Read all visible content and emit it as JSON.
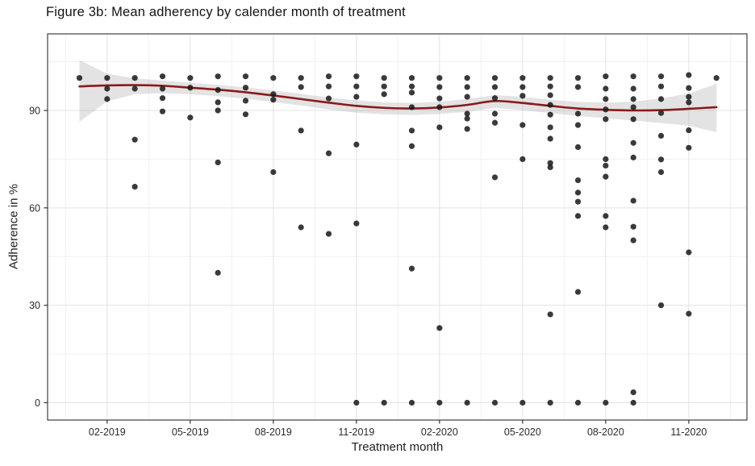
{
  "figure": {
    "title": "Figure 3b: Mean adherency by calender month of treatment"
  },
  "chart_data": {
    "type": "scatter",
    "title": "Figure 3b: Mean adherency by calender month of treatment",
    "xlabel": "Treatment month",
    "ylabel": "Adherence in %",
    "legend": "none",
    "grid": "on",
    "y_ticks": [
      0,
      30,
      60,
      90
    ],
    "y_minor_ticks": [
      15,
      45,
      75,
      105
    ],
    "ylim": [
      -5.34,
      113.58
    ],
    "xlim": [
      -1.15,
      24.1
    ],
    "x_tick_labels": [
      "02-2019",
      "05-2019",
      "08-2019",
      "11-2019",
      "02-2020",
      "05-2020",
      "08-2020",
      "11-2020"
    ],
    "x_tick_month_index": [
      1,
      4,
      7,
      10,
      13,
      16,
      19,
      22
    ],
    "months": [
      "01-2019",
      "02-2019",
      "03-2019",
      "04-2019",
      "05-2019",
      "06-2019",
      "07-2019",
      "08-2019",
      "09-2019",
      "10-2019",
      "11-2019",
      "12-2019",
      "01-2020",
      "02-2020",
      "03-2020",
      "04-2020",
      "05-2020",
      "06-2020",
      "07-2020",
      "08-2020",
      "09-2020",
      "10-2020",
      "11-2020",
      "12-2020"
    ],
    "points_by_month": {
      "01-2019": [
        100
      ],
      "02-2019": [
        100,
        96.7,
        93.5
      ],
      "03-2019": [
        100,
        96.7,
        81,
        66.5
      ],
      "04-2019": [
        100.5,
        96.7,
        93.8,
        89.7
      ],
      "05-2019": [
        100,
        97,
        87.8
      ],
      "06-2019": [
        100.5,
        96.3,
        92.5,
        90,
        74,
        40
      ],
      "07-2019": [
        100.5,
        97,
        93,
        88.8
      ],
      "08-2019": [
        100,
        95,
        93.3,
        71
      ],
      "09-2019": [
        100,
        97.2,
        83.8,
        54
      ],
      "10-2019": [
        100.5,
        97.4,
        93.7,
        76.8,
        52
      ],
      "11-2019": [
        100.5,
        97.4,
        94.2,
        79.5,
        55.2,
        0
      ],
      "12-2019": [
        100,
        97.4,
        95,
        0
      ],
      "01-2020": [
        100,
        97.4,
        95.5,
        91,
        83.8,
        79,
        41.3,
        0
      ],
      "02-2020": [
        100,
        97.2,
        93.7,
        91,
        84.8,
        23,
        0
      ],
      "03-2020": [
        100,
        97.2,
        94.2,
        89,
        87.5,
        84.3,
        0
      ],
      "04-2020": [
        100,
        97.2,
        93.8,
        89,
        86.2,
        69.4,
        0
      ],
      "05-2020": [
        100,
        97.2,
        94.5,
        85.5,
        75,
        0
      ],
      "06-2020": [
        100,
        97.4,
        94.7,
        91.7,
        88.7,
        84.8,
        81.3,
        73.8,
        72.5,
        27.2,
        0
      ],
      "07-2020": [
        100,
        97.2,
        89,
        85.5,
        78.7,
        68.5,
        64.7,
        61.9,
        57.5,
        34.1,
        0
      ],
      "08-2020": [
        100.5,
        96.7,
        93.5,
        90.3,
        87.3,
        75,
        73,
        69.6,
        57.5,
        54,
        0
      ],
      "09-2020": [
        100.5,
        96.7,
        93.5,
        91,
        87.3,
        80,
        75.5,
        62.2,
        54.2,
        50,
        3.2,
        0
      ],
      "10-2020": [
        100.5,
        97.4,
        93.5,
        89.2,
        82.2,
        74.9,
        71,
        30
      ],
      "11-2020": [
        100.9,
        96.9,
        94.2,
        92.5,
        83.9,
        78.5,
        46.3,
        27.4
      ],
      "12-2020": [
        100
      ]
    },
    "smooth_line": {
      "name": "mean-adherence-trend",
      "values": [
        97.4,
        97.7,
        97.8,
        97.6,
        97.0,
        96.4,
        95.6,
        94.6,
        93.5,
        92.4,
        91.4,
        90.8,
        90.6,
        90.9,
        91.7,
        92.9,
        92.3,
        91.4,
        90.6,
        90.2,
        90.0,
        90.1,
        90.5,
        91.0
      ]
    },
    "ci_band": {
      "upper": [
        105.5,
        101.3,
        99.9,
        99.2,
        98.5,
        97.9,
        97.1,
        96.1,
        95.1,
        94.0,
        93.1,
        92.5,
        92.3,
        92.7,
        93.5,
        94.7,
        94.2,
        93.3,
        92.6,
        92.4,
        92.7,
        93.7,
        95.2,
        98.2
      ],
      "lower": [
        86.5,
        92.8,
        95.0,
        95.3,
        95.0,
        94.4,
        93.6,
        92.6,
        91.5,
        90.3,
        89.3,
        88.8,
        88.6,
        88.9,
        89.6,
        90.8,
        90.1,
        89.2,
        88.3,
        87.6,
        86.9,
        86.1,
        85.3,
        83.3
      ]
    },
    "colors": {
      "point": "#1a1a1a",
      "line": "#8b1a1a",
      "band": "#9a9a9a",
      "grid_major": "#e3e3e3",
      "grid_minor": "#f1f1f1",
      "panel_border": "#3f3f3f",
      "tick": "#333333",
      "text": "#1f1f1f"
    }
  }
}
